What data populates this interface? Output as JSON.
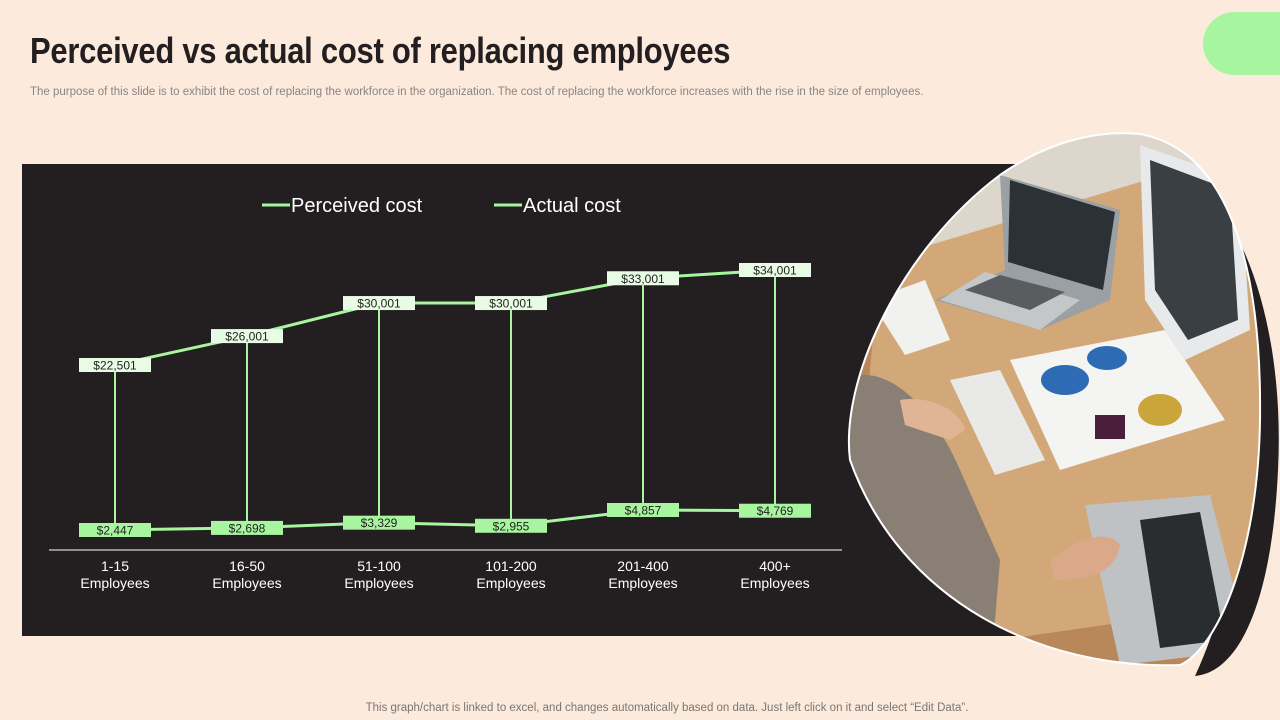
{
  "slide": {
    "title": "Perceived vs actual cost of replacing employees",
    "subtitle": "The purpose of this slide is to exhibit the cost of replacing the workforce in the organization. The cost of replacing the workforce increases with the rise in the size of employees.",
    "footer": "This graph/chart is linked to excel,  and changes automatically based on data. Just left click on it and select “Edit Data”."
  },
  "colors": {
    "background": "#fceadc",
    "panel": "#231f20",
    "accent": "#a8f5a0",
    "perceived_label_bg": "#e8fbe4",
    "actual_label_bg": "#a8f5a0"
  },
  "chart_data": {
    "type": "line",
    "categories": [
      "1-15 Employees",
      "16-50 Employees",
      "51-100 Employees",
      "101-200 Employees",
      "201-400 Employees",
      "400+ Employees"
    ],
    "category_lines": [
      [
        "1-15",
        "Employees"
      ],
      [
        "16-50",
        "Employees"
      ],
      [
        "51-100",
        "Employees"
      ],
      [
        "101-200",
        "Employees"
      ],
      [
        "201-400",
        "Employees"
      ],
      [
        "400+",
        "Employees"
      ]
    ],
    "series": [
      {
        "name": "Perceived cost",
        "values": [
          22501,
          26001,
          30001,
          30001,
          33001,
          34001
        ],
        "labels": [
          "$22,501",
          "$26,001",
          "$30,001",
          "$30,001",
          "$33,001",
          "$34,001"
        ]
      },
      {
        "name": "Actual cost",
        "values": [
          2447,
          2698,
          3329,
          2955,
          4857,
          4769
        ],
        "labels": [
          "$2,447",
          "$2,698",
          "$3,329",
          "$2,955",
          "$4,857",
          "$4,769"
        ]
      }
    ],
    "drop_lines": true,
    "legend_position": "top",
    "grid": false
  }
}
